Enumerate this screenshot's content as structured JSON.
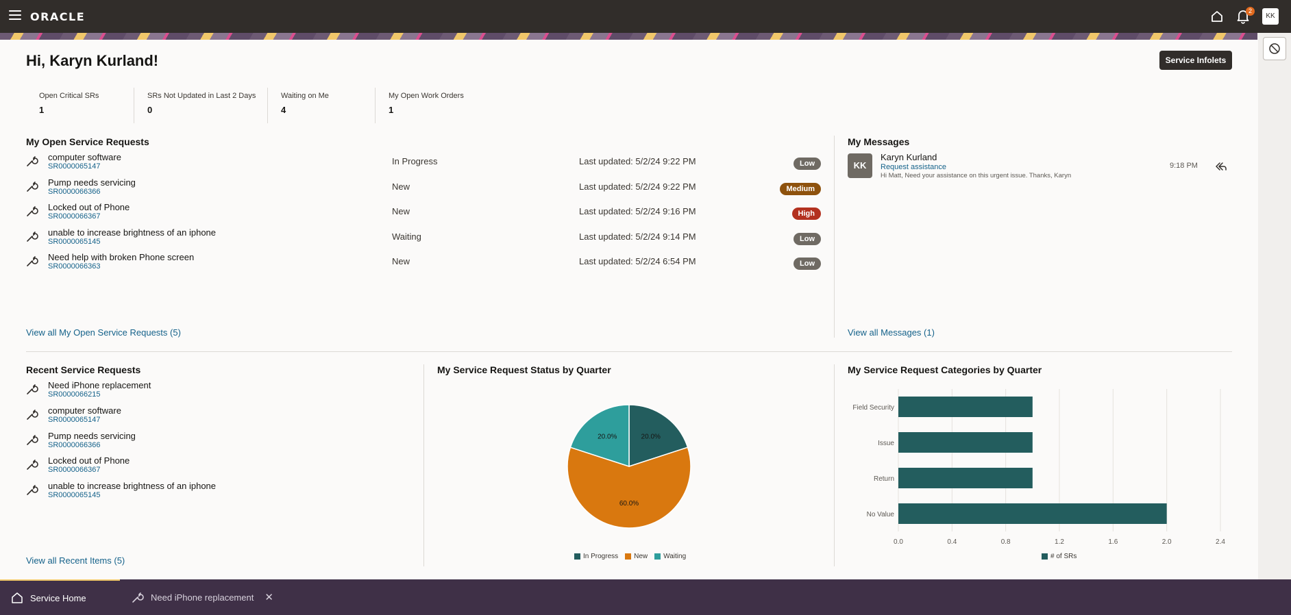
{
  "topbar": {
    "logo": "ORACLE",
    "notification_count": "2",
    "avatar_initials": "KK"
  },
  "greeting": "Hi, Karyn Kurland!",
  "infolets_label": "Service Infolets",
  "metrics": [
    {
      "label": "Open Critical SRs",
      "value": "1"
    },
    {
      "label": "SRs Not Updated in Last 2 Days",
      "value": "0"
    },
    {
      "label": "Waiting on Me",
      "value": "4"
    },
    {
      "label": "My Open Work Orders",
      "value": "1"
    }
  ],
  "open_requests": {
    "title": "My Open Service Requests",
    "items": [
      {
        "title": "computer software",
        "number": "SR0000065147",
        "status": "In Progress",
        "updated": "Last updated: 5/2/24 9:22 PM",
        "priority": "Low",
        "priority_color": "#6f6a63"
      },
      {
        "title": "Pump needs servicing",
        "number": "SR0000066366",
        "status": "New",
        "updated": "Last updated: 5/2/24 9:22 PM",
        "priority": "Medium",
        "priority_color": "#8e520d"
      },
      {
        "title": "Locked out of Phone",
        "number": "SR0000066367",
        "status": "New",
        "updated": "Last updated: 5/2/24 9:16 PM",
        "priority": "High",
        "priority_color": "#b3311f"
      },
      {
        "title": "unable to increase brightness of an iphone",
        "number": "SR0000065145",
        "status": "Waiting",
        "updated": "Last updated: 5/2/24 9:14 PM",
        "priority": "Low",
        "priority_color": "#6f6a63"
      },
      {
        "title": "Need help with broken Phone screen",
        "number": "SR0000066363",
        "status": "New",
        "updated": "Last updated: 5/2/24 6:54 PM",
        "priority": "Low",
        "priority_color": "#6f6a63"
      }
    ],
    "view_all": "View all My Open Service Requests (5)"
  },
  "messages": {
    "title": "My Messages",
    "items": [
      {
        "initials": "KK",
        "name": "Karyn Kurland",
        "subject": "Request assistance",
        "body": "Hi Matt, Need your assistance on this urgent issue. Thanks, Karyn",
        "time": "9:18 PM"
      }
    ],
    "view_all": "View all Messages (1)"
  },
  "recent_requests": {
    "title": "Recent Service Requests",
    "items": [
      {
        "title": "Need iPhone replacement",
        "number": "SR0000066215"
      },
      {
        "title": "computer software",
        "number": "SR0000065147"
      },
      {
        "title": "Pump needs servicing",
        "number": "SR0000066366"
      },
      {
        "title": "Locked out of Phone",
        "number": "SR0000066367"
      },
      {
        "title": "unable to increase brightness of an iphone",
        "number": "SR0000065145"
      }
    ],
    "view_all": "View all Recent Items (5)"
  },
  "chart_data": [
    {
      "type": "pie",
      "title": "My Service Request Status by Quarter",
      "categories": [
        "In Progress",
        "New",
        "Waiting"
      ],
      "values": [
        20.0,
        60.0,
        20.0
      ],
      "labels": [
        "20.0%",
        "60.0%",
        "20.0%"
      ],
      "colors": [
        "#235d5e",
        "#d9780f",
        "#2e9e9c"
      ],
      "legend": "bottom"
    },
    {
      "type": "bar",
      "orientation": "horizontal",
      "title": "My Service Request Categories by Quarter",
      "categories": [
        "Field Security",
        "Issue",
        "Return",
        "No Value"
      ],
      "series": [
        {
          "name": "# of SRs",
          "values": [
            1,
            1,
            1,
            2
          ]
        }
      ],
      "xlim": [
        0,
        2.4
      ],
      "ticks": [
        "0.0",
        "0.4",
        "0.8",
        "1.2",
        "1.6",
        "2.0",
        "2.4"
      ],
      "color": "#235d5e",
      "grid": true,
      "legend": "bottom"
    }
  ],
  "bottom_tabs": {
    "home": "Service Home",
    "sr": "Need iPhone replacement"
  }
}
